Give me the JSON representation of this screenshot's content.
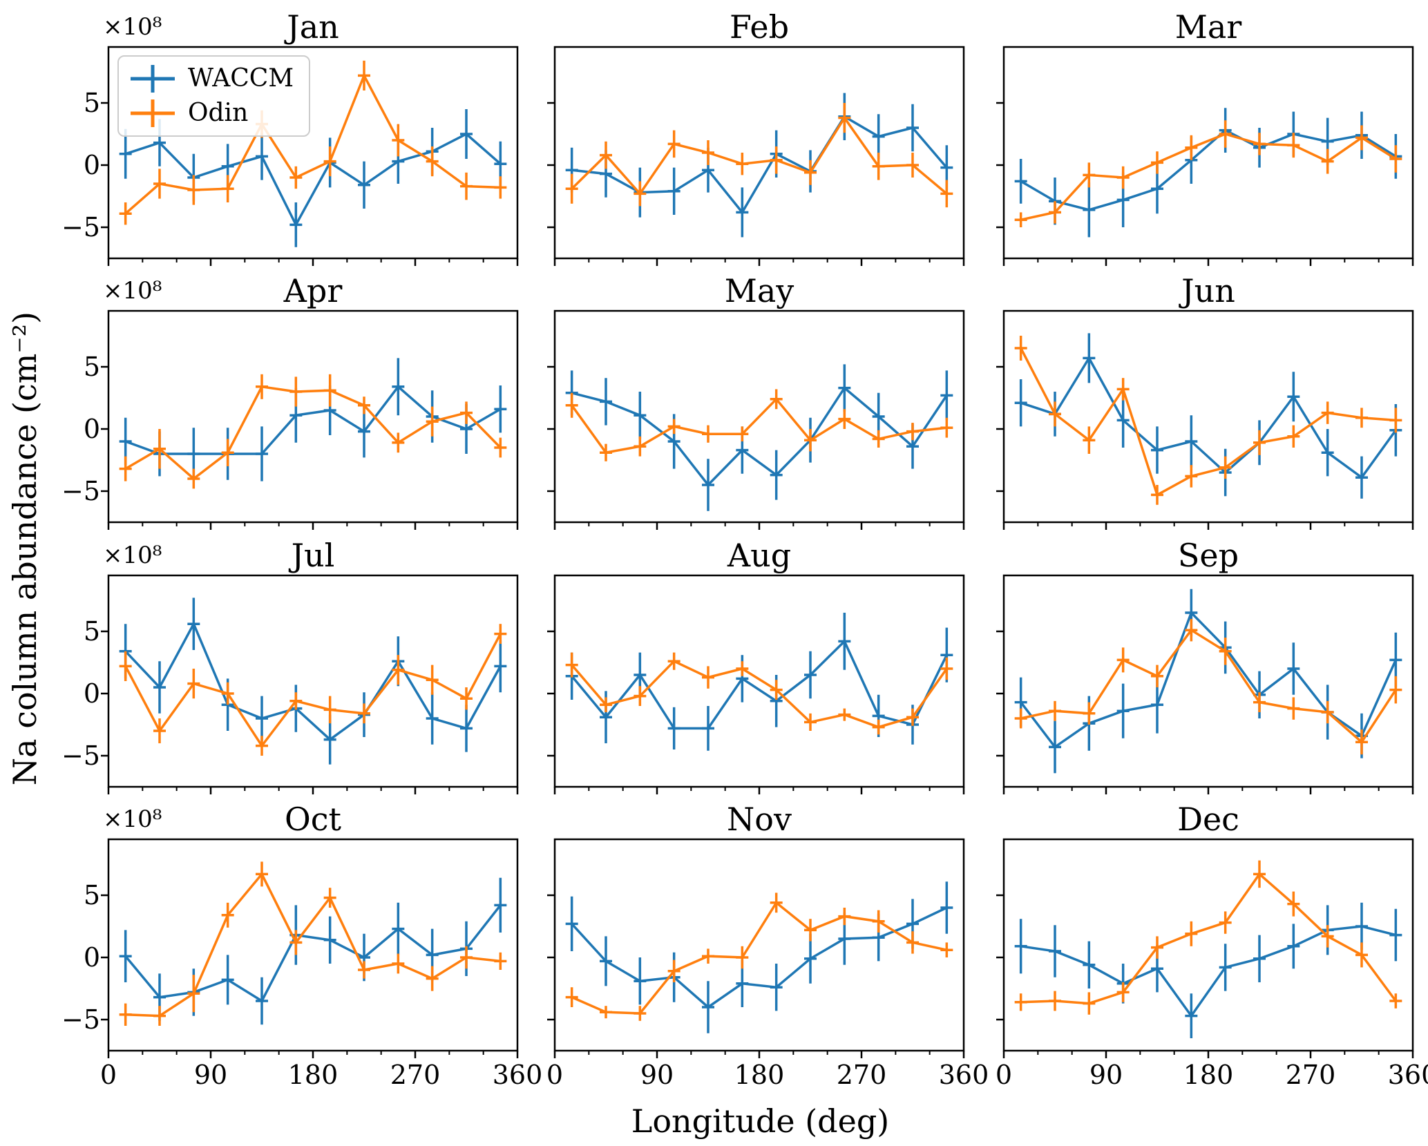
{
  "chart_data": {
    "type": "line",
    "title": "",
    "grid": false,
    "units_note": "values in 1e8 cm^-2 (axis offset text ×10⁸)",
    "offset_text": "×10⁸",
    "xlabel": "Longitude (deg)",
    "ylabel": "Na column abundance (cm⁻²)",
    "xlim": [
      0,
      360
    ],
    "ylim": [
      -7.5,
      9.5
    ],
    "x_major_ticks": [
      0,
      90,
      180,
      270,
      360
    ],
    "x_minor_tick_step": 30,
    "y_major_ticks": [
      -5,
      0,
      5
    ],
    "x": [
      15,
      45,
      75,
      105,
      135,
      165,
      195,
      225,
      255,
      285,
      315,
      345
    ],
    "legend": {
      "position": "upper-left-first-panel",
      "entries": [
        "WACCM",
        "Odin"
      ]
    },
    "colors": {
      "waccm": "#1f77b4",
      "odin": "#ff7f0e"
    },
    "panels": [
      {
        "title": "Jan",
        "waccm": {
          "values": [
            0.9,
            1.8,
            -1.0,
            -0.1,
            0.7,
            -4.8,
            0.2,
            -1.6,
            0.3,
            1.1,
            2.5,
            0.1
          ],
          "errors": [
            2.0,
            1.9,
            1.9,
            1.8,
            1.9,
            1.8,
            2.0,
            1.9,
            1.8,
            1.9,
            2.0,
            1.8
          ]
        },
        "odin": {
          "values": [
            -3.9,
            -1.5,
            -2.0,
            -1.9,
            3.3,
            -1.0,
            0.3,
            7.2,
            2.0,
            0.3,
            -1.7,
            -1.8
          ],
          "errors": [
            0.9,
            1.2,
            1.2,
            1.1,
            1.1,
            0.9,
            1.2,
            1.2,
            1.3,
            1.2,
            1.1,
            0.9
          ]
        }
      },
      {
        "title": "Feb",
        "waccm": {
          "values": [
            -0.4,
            -0.7,
            -2.2,
            -2.1,
            -0.4,
            -3.8,
            0.9,
            -0.5,
            3.9,
            2.3,
            3.0,
            -0.2
          ],
          "errors": [
            1.8,
            1.9,
            2.0,
            1.9,
            1.8,
            2.0,
            1.9,
            1.7,
            1.9,
            1.8,
            1.9,
            1.8
          ]
        },
        "odin": {
          "values": [
            -1.9,
            0.8,
            -2.3,
            1.7,
            1.0,
            0.1,
            0.4,
            -0.6,
            3.8,
            -0.1,
            0.0,
            -2.3
          ],
          "errors": [
            1.2,
            1.1,
            1.0,
            1.1,
            1.0,
            0.9,
            1.1,
            1.0,
            1.2,
            1.1,
            1.0,
            1.1
          ]
        }
      },
      {
        "title": "Mar",
        "waccm": {
          "values": [
            -1.3,
            -2.9,
            -3.6,
            -2.8,
            -1.9,
            0.4,
            2.8,
            1.4,
            2.5,
            1.9,
            2.4,
            0.7
          ],
          "errors": [
            1.8,
            1.9,
            2.2,
            2.2,
            2.0,
            1.9,
            1.8,
            1.6,
            1.8,
            1.9,
            1.9,
            1.8
          ]
        },
        "odin": {
          "values": [
            -4.4,
            -3.8,
            -0.8,
            -1.0,
            0.2,
            1.4,
            2.5,
            1.7,
            1.6,
            0.3,
            2.2,
            0.5
          ],
          "errors": [
            0.6,
            0.9,
            1.0,
            0.9,
            0.9,
            1.0,
            1.1,
            0.9,
            1.0,
            1.0,
            1.0,
            1.1
          ]
        }
      },
      {
        "title": "Apr",
        "waccm": {
          "values": [
            -1.0,
            -2.0,
            -2.0,
            -2.0,
            -2.0,
            1.1,
            1.5,
            -0.2,
            3.4,
            1.0,
            0.0,
            1.6
          ],
          "errors": [
            1.9,
            1.8,
            2.1,
            2.1,
            2.2,
            2.2,
            2.0,
            2.1,
            2.3,
            2.1,
            2.0,
            1.9
          ]
        },
        "odin": {
          "values": [
            -3.2,
            -1.6,
            -4.0,
            -1.9,
            3.4,
            3.0,
            3.1,
            1.9,
            -1.1,
            0.6,
            1.3,
            -1.5
          ],
          "errors": [
            1.0,
            1.6,
            0.8,
            1.1,
            1.0,
            1.2,
            1.3,
            0.7,
            0.8,
            1.2,
            0.9,
            0.8
          ]
        }
      },
      {
        "title": "May",
        "waccm": {
          "values": [
            2.9,
            2.2,
            1.1,
            -1.0,
            -4.5,
            -1.7,
            -3.7,
            -0.9,
            3.3,
            1.0,
            -1.4,
            2.7
          ],
          "errors": [
            1.8,
            1.9,
            1.9,
            2.2,
            2.1,
            1.9,
            2.0,
            1.8,
            1.9,
            1.9,
            1.8,
            2.0
          ]
        },
        "odin": {
          "values": [
            1.9,
            -1.9,
            -1.4,
            0.2,
            -0.4,
            -0.4,
            2.4,
            -0.9,
            0.8,
            -0.8,
            -0.2,
            0.1
          ],
          "errors": [
            1.0,
            0.7,
            0.8,
            0.6,
            0.7,
            0.6,
            0.8,
            0.9,
            0.8,
            0.7,
            0.7,
            0.8
          ]
        }
      },
      {
        "title": "Jun",
        "waccm": {
          "values": [
            2.1,
            1.2,
            5.7,
            0.7,
            -1.7,
            -1.0,
            -3.5,
            -1.1,
            2.6,
            -1.9,
            -3.9,
            -0.1
          ],
          "errors": [
            1.9,
            1.8,
            2.0,
            2.2,
            1.9,
            2.1,
            1.9,
            1.8,
            2.0,
            1.9,
            1.7,
            2.1
          ]
        },
        "odin": {
          "values": [
            6.5,
            1.2,
            -0.9,
            3.2,
            -5.3,
            -3.8,
            -3.1,
            -1.1,
            -0.6,
            1.3,
            0.9,
            0.7
          ],
          "errors": [
            1.0,
            1.0,
            1.1,
            0.9,
            0.8,
            0.9,
            0.9,
            1.0,
            0.9,
            0.9,
            0.8,
            1.0
          ]
        }
      },
      {
        "title": "Jul",
        "waccm": {
          "values": [
            3.4,
            0.5,
            5.6,
            -0.9,
            -2.0,
            -1.2,
            -3.7,
            -1.7,
            2.6,
            -2.0,
            -2.8,
            2.2
          ],
          "errors": [
            2.2,
            2.1,
            2.1,
            2.1,
            1.8,
            1.9,
            2.0,
            1.8,
            2.0,
            2.1,
            1.9,
            2.1
          ]
        },
        "odin": {
          "values": [
            2.2,
            -3.0,
            0.8,
            0.0,
            -4.2,
            -0.6,
            -1.3,
            -1.6,
            1.9,
            1.1,
            -0.4,
            4.8
          ],
          "errors": [
            1.2,
            1.0,
            1.2,
            0.9,
            0.8,
            0.7,
            1.1,
            0.8,
            1.2,
            1.2,
            0.9,
            0.8
          ]
        }
      },
      {
        "title": "Aug",
        "waccm": {
          "values": [
            1.4,
            -1.9,
            1.5,
            -2.8,
            -2.8,
            1.2,
            -0.6,
            1.5,
            4.2,
            -1.8,
            -2.5,
            3.1
          ],
          "errors": [
            1.9,
            2.1,
            1.8,
            1.7,
            1.8,
            1.9,
            2.1,
            1.9,
            2.3,
            1.7,
            1.6,
            2.2
          ]
        },
        "odin": {
          "values": [
            2.3,
            -0.9,
            -0.2,
            2.6,
            1.3,
            2.0,
            0.3,
            -2.3,
            -1.7,
            -2.7,
            -1.9,
            2.0
          ],
          "errors": [
            1.0,
            0.6,
            0.8,
            0.7,
            0.9,
            0.6,
            0.8,
            0.7,
            0.5,
            0.6,
            0.7,
            0.9
          ]
        }
      },
      {
        "title": "Sep",
        "waccm": {
          "values": [
            -0.7,
            -4.3,
            -2.4,
            -1.4,
            -0.9,
            6.5,
            3.7,
            -0.1,
            2.0,
            -1.5,
            -3.4,
            2.7
          ],
          "errors": [
            2.0,
            2.1,
            2.2,
            2.2,
            2.3,
            1.9,
            2.1,
            1.9,
            2.1,
            2.2,
            1.8,
            2.2
          ]
        },
        "odin": {
          "values": [
            -2.0,
            -1.4,
            -1.6,
            2.7,
            1.4,
            5.1,
            3.4,
            -0.7,
            -1.2,
            -1.5,
            -3.9,
            0.3
          ],
          "errors": [
            0.8,
            0.8,
            0.9,
            1.0,
            0.9,
            0.9,
            1.1,
            0.8,
            0.9,
            0.9,
            1.0,
            1.1
          ]
        }
      },
      {
        "title": "Oct",
        "waccm": {
          "values": [
            0.1,
            -3.2,
            -2.8,
            -1.8,
            -3.5,
            1.8,
            1.4,
            0.0,
            2.3,
            0.2,
            0.7,
            4.2
          ],
          "errors": [
            2.1,
            1.9,
            1.9,
            2.0,
            1.9,
            2.4,
            1.9,
            1.9,
            2.1,
            2.1,
            2.2,
            2.2
          ]
        },
        "odin": {
          "values": [
            -4.6,
            -4.7,
            -2.9,
            3.4,
            6.7,
            1.2,
            4.8,
            -1.0,
            -0.5,
            -1.7,
            0.0,
            -0.3
          ],
          "errors": [
            0.9,
            0.8,
            1.5,
            1.0,
            1.0,
            1.0,
            0.8,
            0.7,
            0.8,
            1.0,
            0.9,
            0.7
          ]
        }
      },
      {
        "title": "Nov",
        "waccm": {
          "values": [
            2.7,
            -0.3,
            -1.9,
            -1.6,
            -4.0,
            -2.1,
            -2.4,
            -0.1,
            1.5,
            1.6,
            2.7,
            4.0
          ],
          "errors": [
            2.2,
            2.0,
            1.9,
            2.0,
            2.1,
            1.9,
            1.9,
            2.0,
            2.1,
            1.9,
            2.0,
            2.1
          ]
        },
        "odin": {
          "values": [
            -3.2,
            -4.4,
            -4.5,
            -1.1,
            0.1,
            0.0,
            4.4,
            2.2,
            3.3,
            2.9,
            1.2,
            0.6
          ],
          "errors": [
            0.8,
            0.5,
            0.6,
            0.9,
            0.6,
            0.9,
            0.8,
            0.9,
            0.7,
            0.9,
            0.9,
            0.6
          ]
        }
      },
      {
        "title": "Dec",
        "waccm": {
          "values": [
            0.9,
            0.5,
            -0.6,
            -2.1,
            -0.9,
            -4.7,
            -0.8,
            -0.1,
            0.9,
            2.2,
            2.5,
            1.8
          ],
          "errors": [
            2.2,
            2.1,
            1.9,
            1.6,
            1.9,
            1.8,
            1.9,
            1.9,
            1.8,
            2.0,
            1.9,
            2.1
          ]
        },
        "odin": {
          "values": [
            -3.6,
            -3.5,
            -3.7,
            -2.8,
            0.8,
            1.9,
            2.8,
            6.7,
            4.3,
            1.7,
            0.2,
            -3.5
          ],
          "errors": [
            0.7,
            0.8,
            0.9,
            0.8,
            0.9,
            1.0,
            0.9,
            1.1,
            1.0,
            0.9,
            1.0,
            0.6
          ]
        }
      }
    ]
  }
}
